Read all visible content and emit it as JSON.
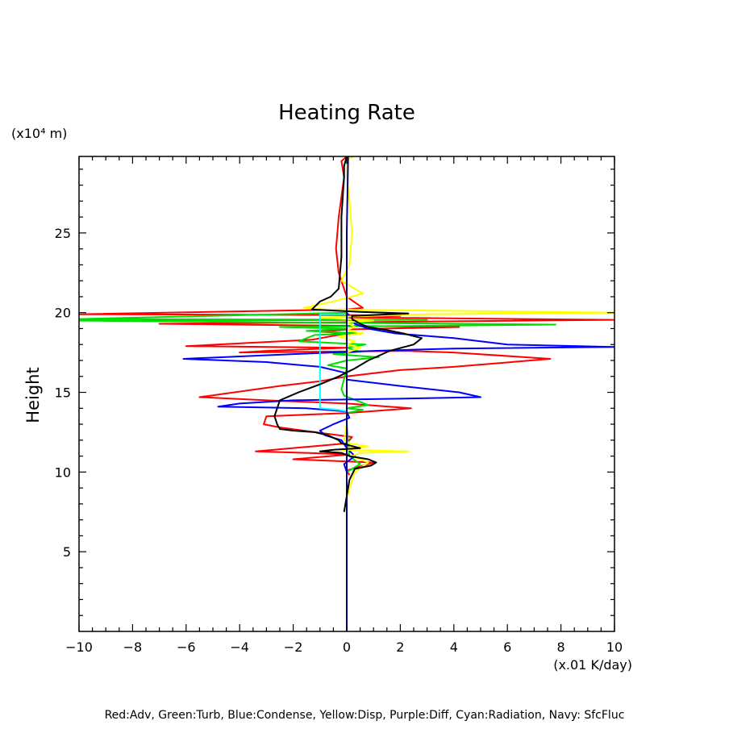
{
  "chart_data": {
    "type": "line",
    "title": "Heating Rate",
    "xlabel": "(x.01 K/day)",
    "ylabel": "Height",
    "yunit": "(x10⁴ m)",
    "footer": "Red:Adv, Green:Turb, Blue:Condense, Yellow:Disp, Purple:Diff, Cyan:Radiation, Navy: SfcFluc",
    "xlim": [
      -10,
      10
    ],
    "ylim": [
      0,
      29.8
    ],
    "x_ticks": [
      -10,
      -8,
      -6,
      -4,
      -2,
      0,
      2,
      4,
      6,
      8,
      10
    ],
    "x_tick_labels": [
      "−10",
      "−8",
      "−6",
      "−4",
      "−2",
      "0",
      "2",
      "4",
      "6",
      "8",
      "10"
    ],
    "y_ticks": [
      5,
      10,
      15,
      20,
      25
    ],
    "y_tick_labels": [
      "5",
      "10",
      "15",
      "20",
      "25"
    ],
    "series": [
      {
        "name": "Red:Adv",
        "color": "#ff0000",
        "points": [
          [
            0,
            29.8
          ],
          [
            -0.2,
            29.5
          ],
          [
            -0.1,
            28.5
          ],
          [
            -0.3,
            26
          ],
          [
            -0.4,
            24
          ],
          [
            -0.3,
            22.5
          ],
          [
            0,
            21
          ],
          [
            0.6,
            20.3
          ],
          [
            0,
            20.2
          ],
          [
            -10,
            19.9
          ],
          [
            0,
            19.85
          ],
          [
            2,
            19.8
          ],
          [
            0,
            19.7
          ],
          [
            10,
            19.55
          ],
          [
            0,
            19.4
          ],
          [
            -7,
            19.3
          ],
          [
            4.2,
            19.1
          ],
          [
            0,
            18.95
          ],
          [
            -1,
            18.8
          ],
          [
            0,
            18.7
          ],
          [
            -1.3,
            18.3
          ],
          [
            -6,
            17.9
          ],
          [
            0,
            17.8
          ],
          [
            -3,
            17.6
          ],
          [
            -4,
            17.5
          ],
          [
            2.2,
            17.6
          ],
          [
            4,
            17.5
          ],
          [
            7.6,
            17.1
          ],
          [
            4,
            16.6
          ],
          [
            2,
            16.4
          ],
          [
            0,
            16.0
          ],
          [
            -1,
            15.7
          ],
          [
            -2.5,
            15.4
          ],
          [
            -5.5,
            14.7
          ],
          [
            -3,
            14.5
          ],
          [
            0,
            14.3
          ],
          [
            2.4,
            14.0
          ],
          [
            0,
            13.7
          ],
          [
            -3,
            13.5
          ],
          [
            -3.1,
            13.0
          ],
          [
            -2.5,
            12.8
          ],
          [
            -1.2,
            12.5
          ],
          [
            0.2,
            12.2
          ],
          [
            0,
            11.8
          ],
          [
            -3.4,
            11.3
          ],
          [
            -1.5,
            11.2
          ],
          [
            0.1,
            11.1
          ],
          [
            -2,
            10.8
          ],
          [
            1,
            10.6
          ],
          [
            0,
            10.1
          ],
          [
            0.1,
            9.8
          ]
        ]
      },
      {
        "name": "Green:Turb",
        "color": "#00dd00",
        "points": [
          [
            0,
            20.0
          ],
          [
            -10,
            19.6
          ],
          [
            3,
            19.55
          ],
          [
            -10,
            19.5
          ],
          [
            7.8,
            19.25
          ],
          [
            -2.5,
            19.1
          ],
          [
            0,
            19.0
          ],
          [
            -1.5,
            18.85
          ],
          [
            0.5,
            18.7
          ],
          [
            -1.2,
            18.6
          ],
          [
            -1.8,
            18.2
          ],
          [
            0.7,
            18.0
          ],
          [
            0,
            17.8
          ],
          [
            0.5,
            17.55
          ],
          [
            -0.5,
            17.4
          ],
          [
            1.2,
            17.2
          ],
          [
            0,
            17.0
          ],
          [
            -0.7,
            16.7
          ],
          [
            0,
            16.5
          ],
          [
            -0.2,
            15.2
          ],
          [
            -0.1,
            14.8
          ],
          [
            0.8,
            14.2
          ],
          [
            0,
            14.0
          ],
          [
            0.6,
            13.9
          ],
          [
            0,
            13.7
          ],
          [
            0,
            13.0
          ],
          [
            0.1,
            11.0
          ],
          [
            0.5,
            10.5
          ],
          [
            0,
            10.0
          ]
        ]
      },
      {
        "name": "Blue:Condense",
        "color": "#0000ff",
        "points": [
          [
            0,
            20.0
          ],
          [
            0.2,
            19.6
          ],
          [
            0.3,
            19.3
          ],
          [
            0.8,
            19.0
          ],
          [
            1.8,
            18.7
          ],
          [
            4,
            18.4
          ],
          [
            6,
            18.0
          ],
          [
            10,
            17.85
          ],
          [
            4,
            17.75
          ],
          [
            1,
            17.6
          ],
          [
            -2,
            17.4
          ],
          [
            -6.1,
            17.1
          ],
          [
            -3,
            16.9
          ],
          [
            -1,
            16.6
          ],
          [
            0,
            16.2
          ],
          [
            0,
            15.8
          ],
          [
            2,
            15.4
          ],
          [
            4.2,
            15.0
          ],
          [
            5,
            14.7
          ],
          [
            2,
            14.6
          ],
          [
            -2,
            14.5
          ],
          [
            -4,
            14.3
          ],
          [
            -4.8,
            14.1
          ],
          [
            -1.5,
            14.0
          ],
          [
            0,
            13.8
          ],
          [
            0.1,
            13.4
          ],
          [
            -0.5,
            13.0
          ],
          [
            -1,
            12.6
          ],
          [
            -0.8,
            12.3
          ],
          [
            -0.2,
            12.0
          ],
          [
            0,
            11.5
          ],
          [
            0.3,
            11.0
          ],
          [
            -0.1,
            10.5
          ],
          [
            0,
            10.0
          ]
        ]
      },
      {
        "name": "Yellow:Disp",
        "color": "#ffff00",
        "points": [
          [
            0.3,
            29.8
          ],
          [
            0,
            29.6
          ],
          [
            0,
            28.5
          ],
          [
            0.1,
            27
          ],
          [
            0.2,
            25
          ],
          [
            0.1,
            23
          ],
          [
            -0.2,
            22
          ],
          [
            0.6,
            21.2
          ],
          [
            -0.5,
            20.7
          ],
          [
            -1.6,
            20.3
          ],
          [
            -0.8,
            20.2
          ],
          [
            10,
            20.0
          ],
          [
            3,
            19.9
          ],
          [
            -1,
            19.7
          ],
          [
            1,
            19.5
          ],
          [
            0,
            19.4
          ],
          [
            0.3,
            19.1
          ],
          [
            0,
            18.9
          ],
          [
            0.6,
            18.7
          ],
          [
            -0.3,
            18.5
          ],
          [
            0.3,
            18.2
          ],
          [
            0,
            18.0
          ],
          [
            0.5,
            17.8
          ],
          [
            0,
            17.5
          ],
          [
            0,
            15
          ],
          [
            0,
            13
          ],
          [
            -0.1,
            12
          ],
          [
            0.1,
            11.8
          ],
          [
            0.8,
            11.6
          ],
          [
            0,
            11.5
          ],
          [
            -0.2,
            11.4
          ],
          [
            2.3,
            11.3
          ],
          [
            0.5,
            11.2
          ],
          [
            0.2,
            11.0
          ],
          [
            0.8,
            10.6
          ],
          [
            0.3,
            10.0
          ],
          [
            0.1,
            9.0
          ],
          [
            0,
            8.2
          ],
          [
            0,
            7.8
          ]
        ]
      },
      {
        "name": "Cyan:Radiation",
        "color": "#00ffff",
        "points": [
          [
            0,
            19.9
          ],
          [
            -1,
            19.9
          ],
          [
            -1,
            14.0
          ],
          [
            -0.3,
            13.9
          ],
          [
            0,
            13.8
          ]
        ]
      },
      {
        "name": "Navy: SfcFluc",
        "color": "#000080",
        "points": [
          [
            0.05,
            29.8
          ],
          [
            0,
            25
          ],
          [
            0,
            20
          ],
          [
            0,
            15
          ],
          [
            0,
            10
          ],
          [
            0,
            5
          ],
          [
            0,
            0
          ]
        ]
      },
      {
        "name": "",
        "color": "#000000",
        "points": [
          [
            0,
            29.8
          ],
          [
            -0.1,
            29.2
          ],
          [
            -0.1,
            28.5
          ],
          [
            -0.2,
            26
          ],
          [
            -0.2,
            23.5
          ],
          [
            -0.3,
            21.5
          ],
          [
            -0.6,
            21
          ],
          [
            -1,
            20.7
          ],
          [
            -1.3,
            20.2
          ],
          [
            0.5,
            20.05
          ],
          [
            2.3,
            19.95
          ],
          [
            0.2,
            19.8
          ],
          [
            0.2,
            19.6
          ],
          [
            0.5,
            19.3
          ],
          [
            0.8,
            19.1
          ],
          [
            1.5,
            18.9
          ],
          [
            2.1,
            18.7
          ],
          [
            2.8,
            18.4
          ],
          [
            2.5,
            18.0
          ],
          [
            1.6,
            17.6
          ],
          [
            1.2,
            17.3
          ],
          [
            0.8,
            17.0
          ],
          [
            0.3,
            16.5
          ],
          [
            -0.3,
            16.0
          ],
          [
            -1,
            15.5
          ],
          [
            -1.8,
            15.0
          ],
          [
            -2.5,
            14.5
          ],
          [
            -2.6,
            14.0
          ],
          [
            -2.7,
            13.5
          ],
          [
            -2.6,
            13.0
          ],
          [
            -2.5,
            12.7
          ],
          [
            -2,
            12.6
          ],
          [
            -1.2,
            12.5
          ],
          [
            -0.7,
            12.3
          ],
          [
            -0.3,
            12.0
          ],
          [
            -0.2,
            11.8
          ],
          [
            0.5,
            11.5
          ],
          [
            -0.5,
            11.4
          ],
          [
            -1,
            11.3
          ],
          [
            -0.2,
            11.2
          ],
          [
            0.1,
            11.0
          ],
          [
            0.8,
            10.8
          ],
          [
            1.1,
            10.6
          ],
          [
            0.9,
            10.4
          ],
          [
            0.3,
            10.2
          ],
          [
            0.1,
            9.5
          ],
          [
            0,
            8.5
          ],
          [
            -0.1,
            7.5
          ]
        ]
      }
    ]
  }
}
